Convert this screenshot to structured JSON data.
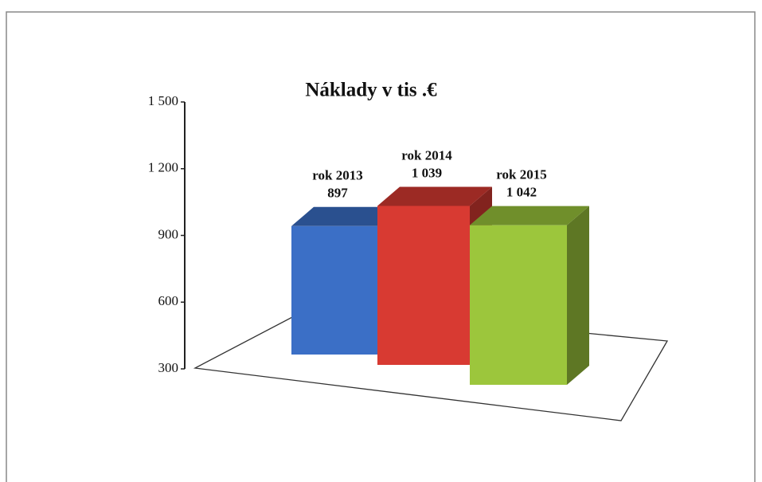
{
  "chart_data": {
    "type": "bar3d",
    "title": "Náklady  v tis .€",
    "categories": [
      "rok  2013",
      "rok  2014",
      "rok  2015"
    ],
    "values": [
      897,
      1039,
      1042
    ],
    "value_labels": [
      "897",
      "1 039",
      "1 042"
    ],
    "colors": [
      "#3b6fc6",
      "#d83a32",
      "#9cc63c"
    ],
    "ylim": [
      300,
      1500
    ],
    "yticks": [
      300,
      600,
      900,
      {
        "value": 1200,
        "label": "1 200"
      },
      {
        "value": 1500,
        "label": "1 500"
      }
    ]
  }
}
